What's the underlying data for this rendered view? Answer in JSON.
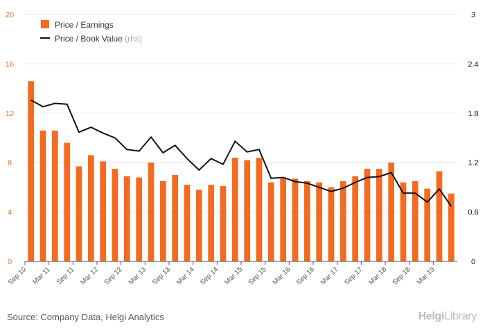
{
  "chart_data": {
    "type": "bar+line",
    "categories": [
      "Sep 10",
      "Dec 10",
      "Mar 11",
      "Jun 11",
      "Sep 11",
      "Dec 11",
      "Mar 12",
      "Jun 12",
      "Sep 12",
      "Dec 12",
      "Mar 13",
      "Jun 13",
      "Sep 13",
      "Dec 13",
      "Mar 14",
      "Jun 14",
      "Sep 14",
      "Dec 14",
      "Mar 15",
      "Jun 15",
      "Sep 15",
      "Dec 15",
      "Mar 16",
      "Jun 16",
      "Sep 16",
      "Dec 16",
      "Mar 17",
      "Jun 17",
      "Sep 17",
      "Dec 17",
      "Mar 18",
      "Jun 18",
      "Sep 18",
      "Dec 18",
      "Mar 19",
      "Jun 19"
    ],
    "x_tick_labels": [
      "Sep 10",
      "Mar 11",
      "Sep 11",
      "Mar 12",
      "Sep 12",
      "Mar 13",
      "Sep 13",
      "Mar 14",
      "Sep 14",
      "Mar 15",
      "Sep 15",
      "Mar 16",
      "Sep 16",
      "Mar 17",
      "Sep 17",
      "Mar 18",
      "Sep 18",
      "Mar 19"
    ],
    "series": [
      {
        "name": "Price / Earnings",
        "axis": "left",
        "type": "bar",
        "color": "#f26b21",
        "values": [
          14.6,
          10.6,
          10.6,
          9.6,
          7.7,
          8.6,
          8.1,
          7.5,
          6.9,
          6.8,
          8.0,
          6.5,
          7.0,
          6.2,
          5.8,
          6.2,
          6.1,
          8.4,
          8.2,
          8.4,
          6.4,
          6.8,
          6.7,
          6.5,
          6.4,
          6.0,
          6.5,
          6.9,
          7.5,
          7.5,
          8.0,
          6.4,
          6.5,
          5.9,
          7.3,
          5.5
        ]
      },
      {
        "name": "Price / Book Value",
        "axis": "right",
        "type": "line",
        "color": "#111111",
        "values": [
          1.96,
          1.88,
          1.92,
          1.91,
          1.57,
          1.63,
          1.56,
          1.5,
          1.36,
          1.34,
          1.51,
          1.32,
          1.41,
          1.25,
          1.11,
          1.25,
          1.18,
          1.46,
          1.33,
          1.36,
          1.01,
          1.02,
          0.97,
          0.95,
          0.9,
          0.85,
          0.89,
          0.96,
          1.02,
          1.03,
          1.08,
          0.83,
          0.83,
          0.72,
          0.88,
          0.67
        ]
      }
    ],
    "legend_labels": [
      "Price / Earnings",
      "Price / Book Value"
    ],
    "legend_suffix": "(rhs)",
    "left_axis": {
      "min": 0,
      "max": 20,
      "ticks": [
        "0",
        "4",
        "8",
        "12",
        "16",
        "20"
      ],
      "color": "#f26b21"
    },
    "right_axis": {
      "min": 0,
      "max": 3,
      "ticks": [
        "0",
        "0.6",
        "1.2",
        "1.8",
        "2.4",
        "3"
      ],
      "color": "#111111"
    },
    "legend_placement": "top-left",
    "grid": "horizontal"
  },
  "footer": {
    "source": "Source: Company Data, Helgi Analytics",
    "logo_bold": "Helgi",
    "logo_thin": "Library"
  }
}
